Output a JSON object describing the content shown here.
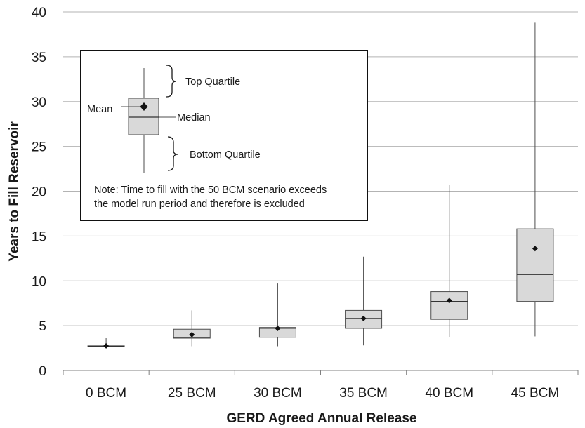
{
  "chart_data": {
    "type": "box",
    "xlabel": "GERD Agreed Annual Release",
    "ylabel": "Years to Fill Reservoir",
    "ylim": [
      0,
      40
    ],
    "yticks": [
      0,
      5,
      10,
      15,
      20,
      25,
      30,
      35,
      40
    ],
    "grid": true,
    "categories": [
      "0 BCM",
      "25 BCM",
      "30 BCM",
      "35 BCM",
      "40 BCM",
      "45 BCM"
    ],
    "boxes": [
      {
        "min": 2.7,
        "q1": 2.7,
        "median": 2.7,
        "q3": 2.75,
        "max": 3.6,
        "mean": 2.75
      },
      {
        "min": 2.7,
        "q1": 3.6,
        "median": 3.7,
        "q3": 4.6,
        "max": 6.7,
        "mean": 4.0
      },
      {
        "min": 2.7,
        "q1": 3.7,
        "median": 4.7,
        "q3": 4.8,
        "max": 9.7,
        "mean": 4.7
      },
      {
        "min": 2.8,
        "q1": 4.7,
        "median": 5.8,
        "q3": 6.7,
        "max": 12.7,
        "mean": 5.8
      },
      {
        "min": 3.7,
        "q1": 5.7,
        "median": 7.7,
        "q3": 8.8,
        "max": 20.7,
        "mean": 7.8
      },
      {
        "min": 3.8,
        "q1": 7.7,
        "median": 10.7,
        "q3": 15.8,
        "max": 38.8,
        "mean": 13.6
      }
    ],
    "legend": {
      "position": "top-left",
      "mean_label": "Mean",
      "median_label": "Median",
      "top_quartile_label": "Top Quartile",
      "bottom_quartile_label": "Bottom Quartile",
      "note_line1": "Note: Time to fill with the 50 BCM scenario exceeds",
      "note_line2": "the model run period and therefore is excluded"
    }
  }
}
